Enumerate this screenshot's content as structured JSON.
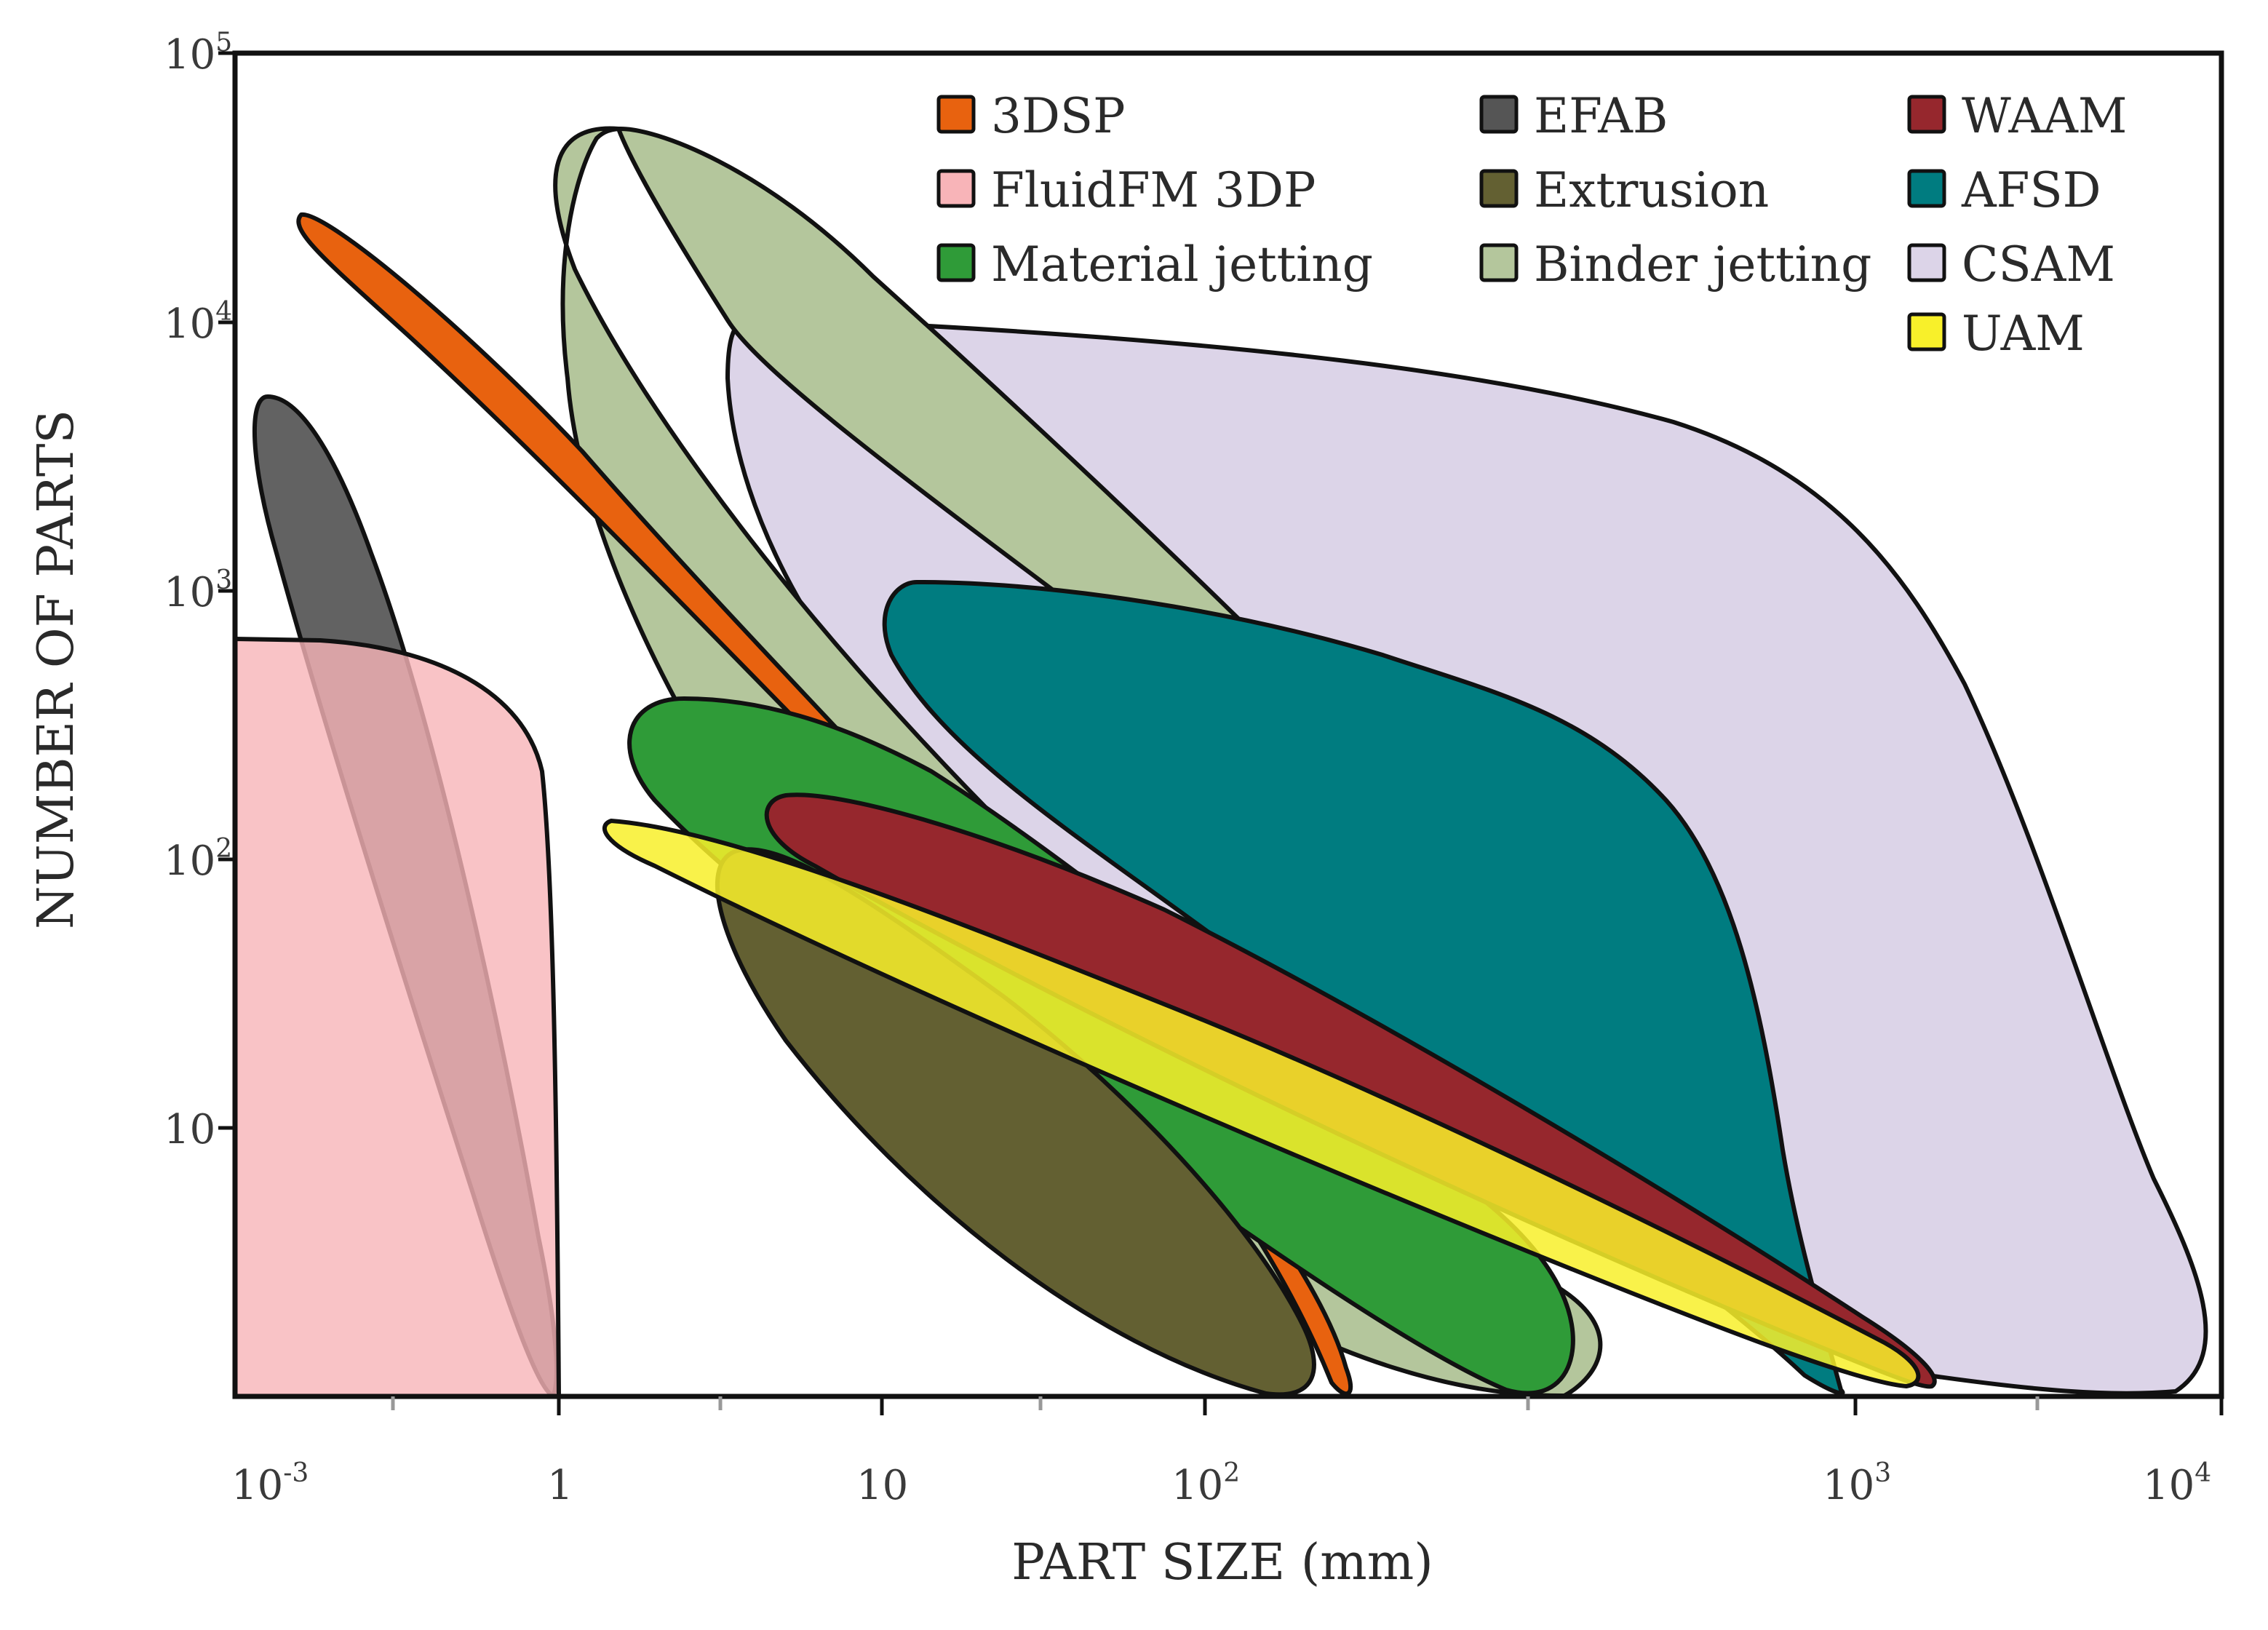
{
  "chart_data": {
    "type": "region",
    "xlabel": "PART SIZE (mm)",
    "ylabel": "NUMBER OF PARTS",
    "x_scale": "log",
    "y_scale": "log",
    "x_ticks": [
      {
        "base": "10",
        "exp": "-3"
      },
      {
        "base": "1",
        "exp": ""
      },
      {
        "base": "10",
        "exp": ""
      },
      {
        "base": "10",
        "exp": "2"
      },
      {
        "base": "10",
        "exp": "3"
      },
      {
        "base": "10",
        "exp": "4"
      }
    ],
    "y_ticks": [
      {
        "base": "10",
        "exp": "5"
      },
      {
        "base": "10",
        "exp": "4"
      },
      {
        "base": "10",
        "exp": "3"
      },
      {
        "base": "10",
        "exp": "2"
      },
      {
        "base": "10",
        "exp": ""
      }
    ],
    "legend": {
      "placement": "top-right",
      "entries": [
        {
          "key": "3dsp",
          "label": "3DSP",
          "color": "#e8620f"
        },
        {
          "key": "fluidfm",
          "label": "FluidFM 3DP",
          "color": "#f8b4b8"
        },
        {
          "key": "matjet",
          "label": "Material jetting",
          "color": "#2f9b38"
        },
        {
          "key": "efab",
          "label": "EFAB",
          "color": "#555555"
        },
        {
          "key": "extrusion",
          "label": "Extrusion",
          "color": "#636032"
        },
        {
          "key": "binder",
          "label": "Binder jetting",
          "color": "#b4c69c"
        },
        {
          "key": "waam",
          "label": "WAAM",
          "color": "#96272d"
        },
        {
          "key": "afsd",
          "label": "AFSD",
          "color": "#007c80"
        },
        {
          "key": "csam",
          "label": "CSAM",
          "color": "#dcd4e8"
        },
        {
          "key": "uam",
          "label": "UAM",
          "color": "#f8f02a"
        }
      ]
    },
    "series": [
      {
        "key": "fluidfm",
        "name": "FluidFM 3DP",
        "part_size_mm": [
          "<10^-3",
          1
        ],
        "num_parts": [
          1,
          700
        ]
      },
      {
        "key": "efab",
        "name": "EFAB",
        "part_size_mm": [
          "~10^-3",
          1
        ],
        "num_parts": [
          1,
          5000
        ]
      },
      {
        "key": "3dsp",
        "name": "3DSP",
        "part_size_mm": [
          "~10^-3",
          180
        ],
        "num_parts": [
          1,
          25000
        ]
      },
      {
        "key": "binder",
        "name": "Binder jetting",
        "part_size_mm": [
          1,
          400
        ],
        "num_parts": [
          1,
          50000
        ]
      },
      {
        "key": "csam",
        "name": "CSAM",
        "part_size_mm": [
          4,
          9000
        ],
        "num_parts": [
          1,
          10000
        ]
      },
      {
        "key": "afsd",
        "name": "AFSD",
        "part_size_mm": [
          10,
          1000
        ],
        "num_parts": [
          1,
          1000
        ]
      },
      {
        "key": "matjet",
        "name": "Material jetting",
        "part_size_mm": [
          2,
          350
        ],
        "num_parts": [
          1,
          300
        ]
      },
      {
        "key": "extrusion",
        "name": "Extrusion",
        "part_size_mm": [
          3,
          150
        ],
        "num_parts": [
          1,
          100
        ]
      },
      {
        "key": "waam",
        "name": "WAAM",
        "part_size_mm": [
          5,
          1300
        ],
        "num_parts": [
          1,
          150
        ]
      },
      {
        "key": "uam",
        "name": "UAM",
        "part_size_mm": [
          1.5,
          1200
        ],
        "num_parts": [
          1,
          130
        ]
      }
    ]
  }
}
